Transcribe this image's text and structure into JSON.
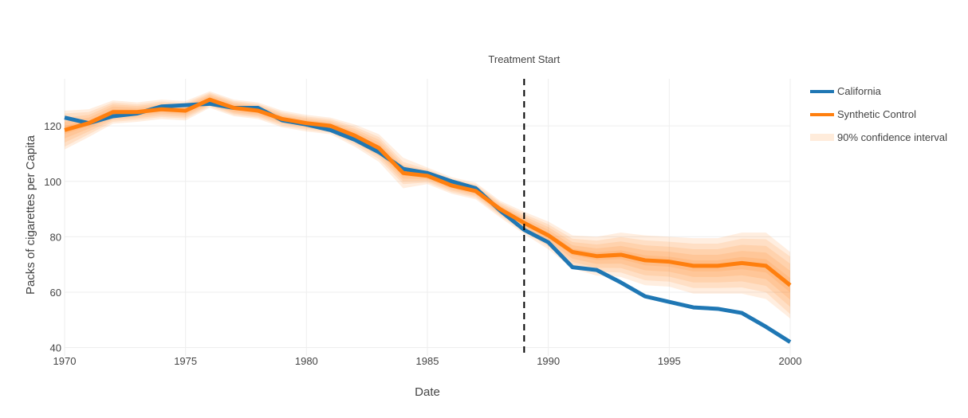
{
  "chart_data": {
    "type": "line",
    "title": "",
    "xlabel": "Date",
    "ylabel": "Packs of cigarettes per Capita",
    "xlim": [
      1970,
      2000
    ],
    "ylim": [
      37,
      137
    ],
    "x_ticks": [
      1970,
      1975,
      1980,
      1985,
      1990,
      1995,
      2000
    ],
    "y_ticks": [
      40,
      60,
      80,
      100,
      120
    ],
    "grid": true,
    "legend_position": "top-right",
    "x": [
      1970,
      1971,
      1972,
      1973,
      1974,
      1975,
      1976,
      1977,
      1978,
      1979,
      1980,
      1981,
      1982,
      1983,
      1984,
      1985,
      1986,
      1987,
      1988,
      1989,
      1990,
      1991,
      1992,
      1993,
      1994,
      1995,
      1996,
      1997,
      1998,
      1999,
      2000
    ],
    "series": [
      {
        "name": "California",
        "color": "#1f77b4",
        "values": [
          123.0,
          121.0,
          123.5,
          124.5,
          127.0,
          127.5,
          128.0,
          126.5,
          126.5,
          122.0,
          120.5,
          118.5,
          115.0,
          110.5,
          104.5,
          103.0,
          100.0,
          97.5,
          89.5,
          82.5,
          78.0,
          69.0,
          68.0,
          63.5,
          58.5,
          56.5,
          54.5,
          54.0,
          52.5,
          47.5,
          42.0
        ]
      },
      {
        "name": "Synthetic Control",
        "color": "#ff7f0e",
        "values": [
          118.5,
          121.0,
          125.0,
          125.0,
          126.0,
          125.5,
          129.5,
          126.5,
          125.5,
          122.5,
          121.0,
          120.0,
          116.5,
          112.0,
          103.0,
          102.0,
          98.5,
          96.5,
          90.0,
          85.0,
          80.5,
          74.5,
          73.0,
          73.5,
          71.5,
          71.0,
          69.5,
          69.5,
          70.5,
          69.5,
          62.5
        ]
      }
    ],
    "confidence_band": {
      "name": "90% confidence interval",
      "color": "#ff7f0e",
      "half_widths": [
        [
          1.5,
          1.0,
          1.0,
          0.8,
          0.8,
          0.8,
          0.8,
          0.8,
          0.8,
          0.6,
          0.6,
          0.6,
          0.8,
          1.0,
          1.0,
          0.6,
          0.6,
          0.6,
          0.6,
          0.8,
          1.0,
          1.2,
          1.4,
          1.6,
          1.8,
          1.8,
          2.0,
          2.0,
          2.2,
          2.4,
          2.6
        ],
        [
          3.0,
          2.0,
          2.0,
          1.5,
          1.5,
          1.5,
          1.5,
          1.5,
          1.5,
          1.2,
          1.2,
          1.2,
          1.6,
          2.0,
          2.0,
          1.2,
          1.2,
          1.2,
          1.2,
          1.6,
          2.0,
          2.4,
          2.8,
          3.2,
          3.6,
          3.6,
          4.0,
          4.0,
          4.4,
          4.8,
          5.2
        ],
        [
          4.5,
          3.0,
          2.8,
          2.2,
          2.2,
          2.2,
          2.0,
          2.0,
          2.0,
          1.8,
          1.8,
          1.8,
          2.4,
          3.0,
          3.0,
          1.8,
          1.8,
          1.8,
          1.8,
          2.4,
          3.0,
          3.6,
          4.2,
          4.8,
          5.4,
          5.4,
          6.0,
          6.0,
          6.6,
          7.2,
          7.8
        ],
        [
          6.0,
          4.0,
          3.5,
          2.8,
          2.8,
          2.8,
          2.5,
          2.5,
          2.5,
          2.4,
          2.4,
          2.4,
          3.2,
          4.0,
          4.0,
          2.4,
          2.4,
          2.4,
          2.4,
          3.2,
          4.0,
          4.8,
          5.6,
          6.4,
          7.2,
          7.2,
          8.0,
          8.0,
          8.8,
          9.6,
          10.4
        ],
        [
          7.0,
          5.0,
          4.2,
          3.5,
          3.5,
          3.5,
          3.0,
          3.0,
          3.0,
          3.0,
          3.0,
          3.0,
          4.0,
          5.0,
          5.5,
          3.0,
          3.0,
          3.0,
          3.0,
          4.0,
          5.0,
          6.0,
          7.0,
          8.0,
          9.0,
          9.0,
          10.0,
          10.0,
          11.0,
          12.0,
          12.0
        ]
      ]
    },
    "annotations": [
      {
        "type": "vline",
        "x": 1989,
        "label": "Treatment Start",
        "color": "#000000",
        "dash": "dash"
      }
    ]
  }
}
